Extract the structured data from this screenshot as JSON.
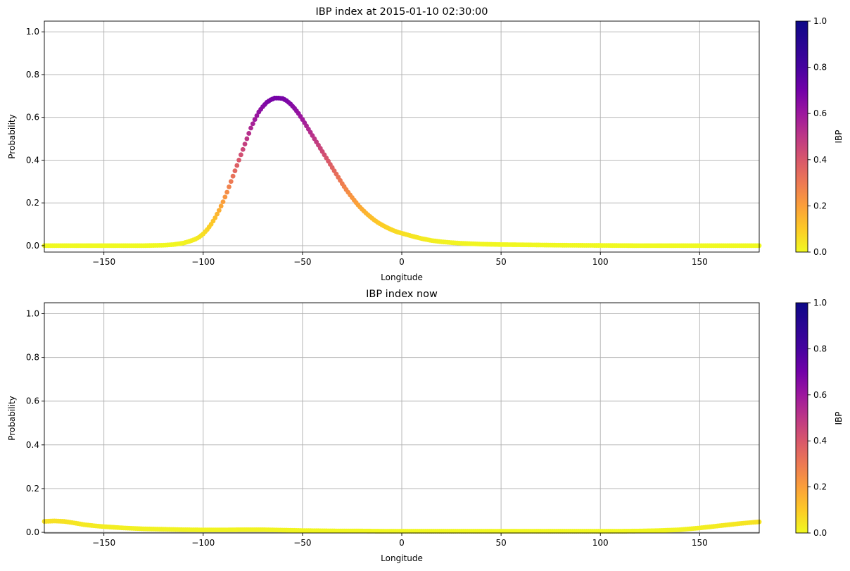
{
  "chart_data": [
    {
      "type": "scatter",
      "title": "IBP index at 2015-01-10 02:30:00",
      "xlabel": "Longitude",
      "ylabel": "Probability",
      "xlim": [
        -180,
        180
      ],
      "ylim": [
        -0.03,
        1.05
      ],
      "xticks": [
        "-150",
        "-100",
        "-50",
        "0",
        "50",
        "100",
        "150"
      ],
      "yticks": [
        "0.0",
        "0.2",
        "0.4",
        "0.6",
        "0.8",
        "1.0"
      ],
      "grid": true,
      "colormap": "plasma_r",
      "colorbar": {
        "label": "IBP",
        "range": [
          0,
          1
        ],
        "ticks": [
          "0.0",
          "0.2",
          "0.4",
          "0.6",
          "0.8",
          "1.0"
        ]
      },
      "x": [
        -180,
        -170,
        -160,
        -150,
        -140,
        -130,
        -120,
        -115,
        -110,
        -107,
        -104,
        -102,
        -100,
        -98,
        -96,
        -94,
        -92,
        -90,
        -88,
        -86,
        -84,
        -82,
        -80,
        -78,
        -76,
        -74,
        -72,
        -70,
        -68,
        -66,
        -64,
        -62,
        -60,
        -58,
        -56,
        -54,
        -52,
        -50,
        -48,
        -46,
        -44,
        -42,
        -40,
        -38,
        -36,
        -34,
        -32,
        -30,
        -28,
        -26,
        -24,
        -22,
        -20,
        -18,
        -16,
        -14,
        -12,
        -10,
        -8,
        -6,
        -4,
        -2,
        0,
        5,
        10,
        15,
        20,
        25,
        30,
        40,
        50,
        60,
        70,
        80,
        100,
        120,
        140,
        160,
        180
      ],
      "y": [
        0.0,
        0.0,
        0.0,
        0.0,
        0.0,
        0.0,
        0.002,
        0.005,
        0.012,
        0.02,
        0.03,
        0.04,
        0.055,
        0.075,
        0.1,
        0.13,
        0.165,
        0.205,
        0.25,
        0.3,
        0.35,
        0.4,
        0.45,
        0.5,
        0.55,
        0.59,
        0.625,
        0.65,
        0.67,
        0.682,
        0.69,
        0.69,
        0.688,
        0.678,
        0.662,
        0.642,
        0.618,
        0.59,
        0.56,
        0.53,
        0.5,
        0.47,
        0.44,
        0.41,
        0.38,
        0.35,
        0.32,
        0.29,
        0.262,
        0.237,
        0.213,
        0.19,
        0.17,
        0.152,
        0.136,
        0.121,
        0.108,
        0.097,
        0.087,
        0.078,
        0.07,
        0.063,
        0.058,
        0.045,
        0.033,
        0.024,
        0.018,
        0.014,
        0.011,
        0.007,
        0.005,
        0.004,
        0.003,
        0.002,
        0.001,
        0.0,
        0.0,
        0.0,
        0.0
      ]
    },
    {
      "type": "scatter",
      "title": "IBP index now",
      "xlabel": "Longitude",
      "ylabel": "Probability",
      "xlim": [
        -180,
        180
      ],
      "ylim": [
        -0.003,
        1.05
      ],
      "xticks": [
        "-150",
        "-100",
        "-50",
        "0",
        "50",
        "100",
        "150"
      ],
      "yticks": [
        "0.0",
        "0.2",
        "0.4",
        "0.6",
        "0.8",
        "1.0"
      ],
      "grid": true,
      "colormap": "plasma_r",
      "colorbar": {
        "label": "IBP",
        "range": [
          0,
          1
        ],
        "ticks": [
          "0.0",
          "0.2",
          "0.4",
          "0.6",
          "0.8",
          "1.0"
        ]
      },
      "x": [
        -180,
        -175,
        -170,
        -165,
        -160,
        -155,
        -150,
        -140,
        -130,
        -120,
        -110,
        -100,
        -90,
        -80,
        -70,
        -60,
        -50,
        -40,
        -30,
        -20,
        -10,
        0,
        10,
        20,
        30,
        40,
        50,
        60,
        70,
        80,
        90,
        100,
        110,
        120,
        130,
        140,
        145,
        150,
        155,
        160,
        165,
        170,
        175,
        180
      ],
      "y": [
        0.05,
        0.052,
        0.05,
        0.043,
        0.035,
        0.03,
        0.026,
        0.02,
        0.016,
        0.014,
        0.012,
        0.011,
        0.011,
        0.012,
        0.012,
        0.01,
        0.008,
        0.007,
        0.006,
        0.006,
        0.005,
        0.005,
        0.005,
        0.005,
        0.005,
        0.005,
        0.005,
        0.005,
        0.005,
        0.005,
        0.005,
        0.005,
        0.005,
        0.006,
        0.008,
        0.012,
        0.016,
        0.02,
        0.025,
        0.03,
        0.035,
        0.04,
        0.044,
        0.048
      ]
    }
  ]
}
